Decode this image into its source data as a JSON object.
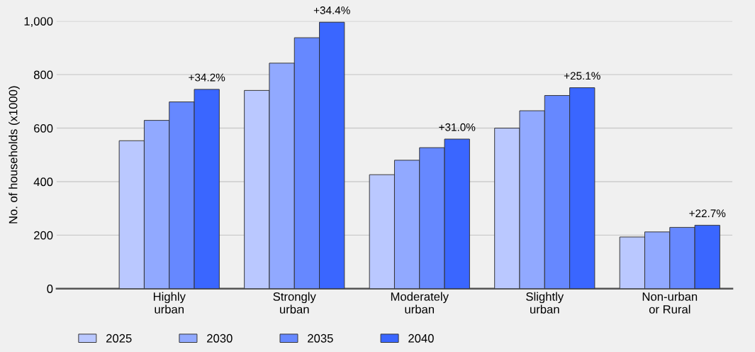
{
  "chart_data": {
    "type": "bar",
    "ylabel": "No. of households (x1000)",
    "categories": [
      "Highly\nurban",
      "Strongly\nurban",
      "Moderately\nurban",
      "Slightly\nurban",
      "Non-urban\nor Rural"
    ],
    "series": [
      {
        "name": "2025",
        "color": "#bac8ff",
        "values": [
          553,
          741,
          426,
          600,
          193
        ]
      },
      {
        "name": "2030",
        "color": "#91a9ff",
        "values": [
          629,
          843,
          480,
          665,
          212
        ]
      },
      {
        "name": "2035",
        "color": "#6688ff",
        "values": [
          698,
          938,
          527,
          722,
          229
        ]
      },
      {
        "name": "2040",
        "color": "#3a66ff",
        "values": [
          745,
          996,
          559,
          751,
          237
        ]
      }
    ],
    "annotations": [
      "+34.2%",
      "+34.4%",
      "+31.0%",
      "+25.1%",
      "+22.7%"
    ],
    "ylim": [
      0,
      1000
    ],
    "yticks": [
      0,
      200,
      400,
      600,
      800,
      {
        "value": 1000,
        "label": "1,000"
      }
    ],
    "grid": "y",
    "legend": "bottom left"
  }
}
